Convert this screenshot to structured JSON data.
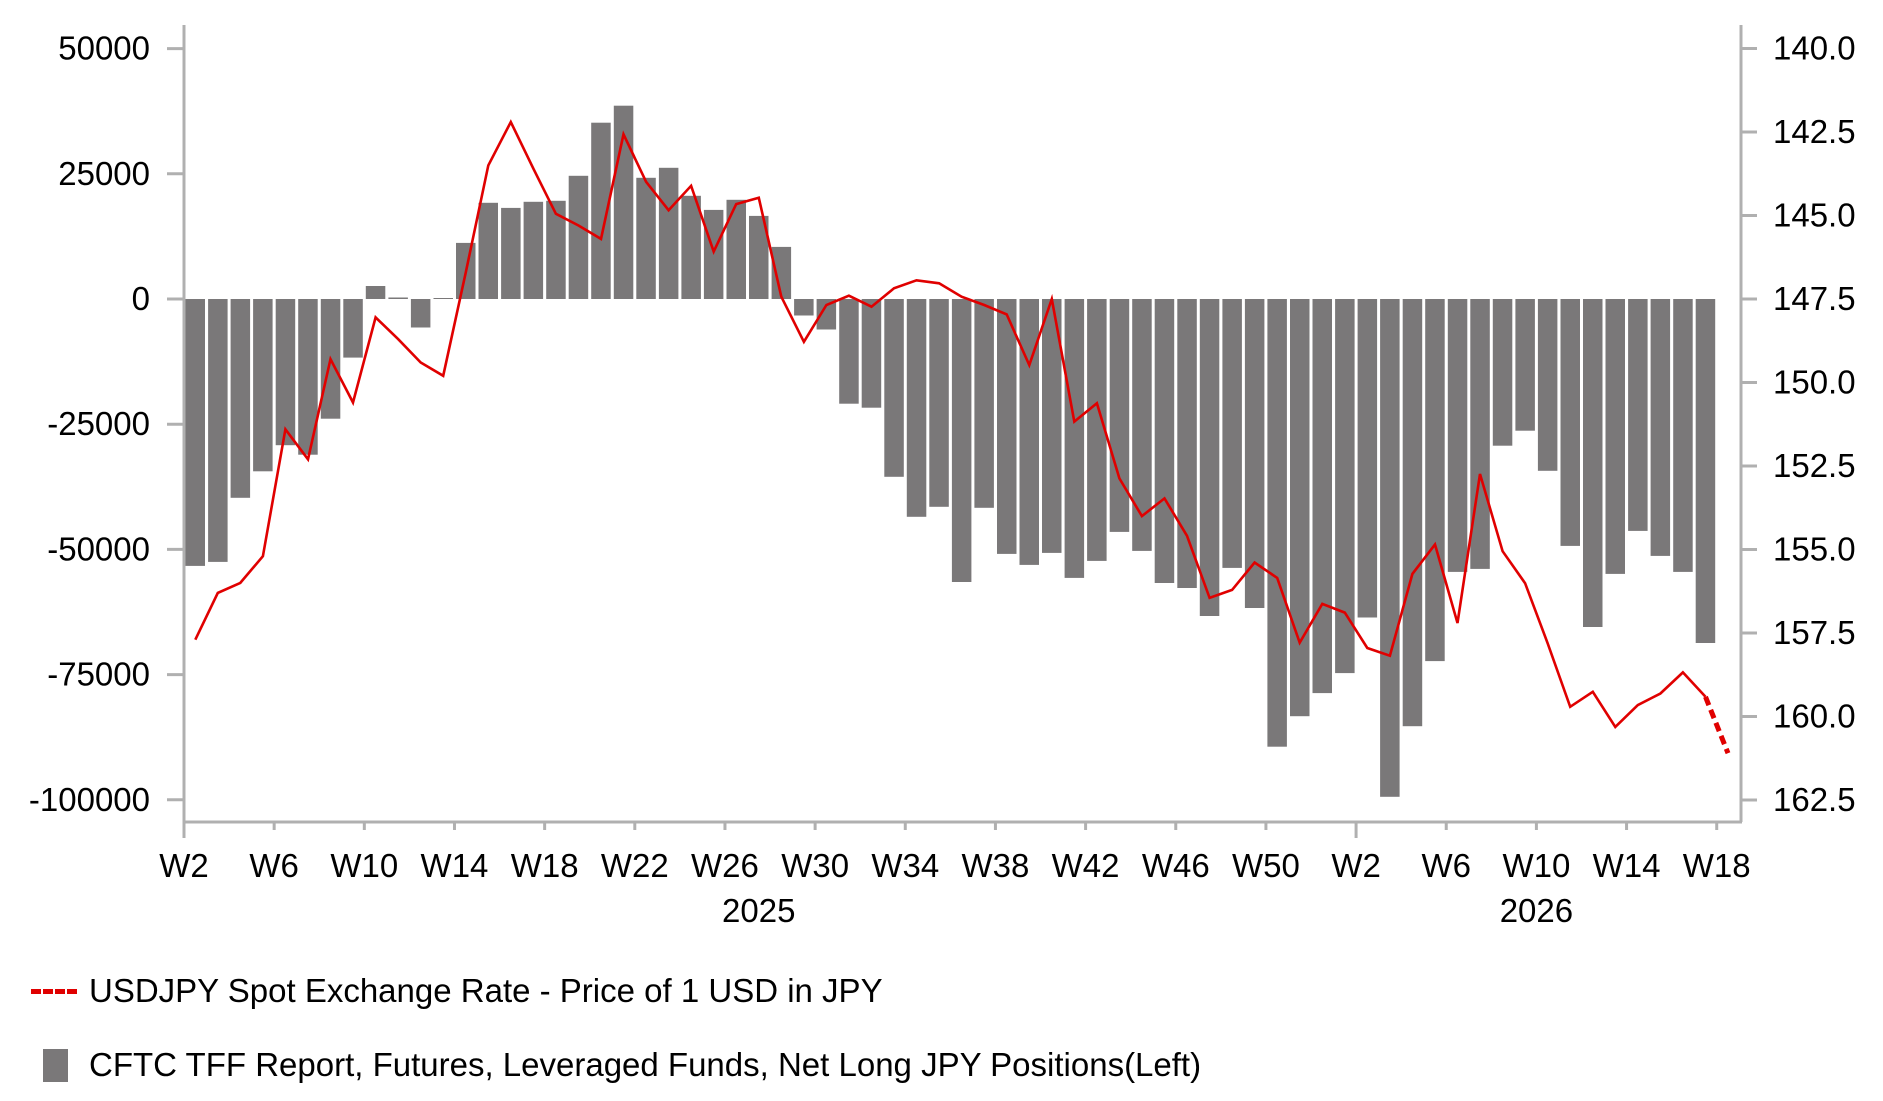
{
  "chart_data": {
    "type": "bar+line",
    "title": "",
    "categories": [
      "W2",
      "W3",
      "W4",
      "W5",
      "W6",
      "W7",
      "W8",
      "W9",
      "W10",
      "W11",
      "W12",
      "W13",
      "W14",
      "W15",
      "W16",
      "W17",
      "W18",
      "W19",
      "W20",
      "W21",
      "W22",
      "W23",
      "W24",
      "W25",
      "W26",
      "W27",
      "W28",
      "W29",
      "W30",
      "W31",
      "W32",
      "W33",
      "W34",
      "W35",
      "W36",
      "W37",
      "W38",
      "W39",
      "W40",
      "W41",
      "W42",
      "W43",
      "W44",
      "W45",
      "W46",
      "W47",
      "W48",
      "W49",
      "W50",
      "W51",
      "W52",
      "W1",
      "W2",
      "W3",
      "W4",
      "W5",
      "W6",
      "W7",
      "W8",
      "W9",
      "W10",
      "W11",
      "W12",
      "W13",
      "W14",
      "W15",
      "W16",
      "W17",
      "W18"
    ],
    "x_tick_labels": [
      "W2",
      "W6",
      "W10",
      "W14",
      "W18",
      "W22",
      "W26",
      "W30",
      "W34",
      "W38",
      "W42",
      "W46",
      "W50",
      "W2",
      "W6",
      "W10",
      "W14",
      "W18"
    ],
    "x_tick_indices": [
      0,
      4,
      8,
      12,
      16,
      20,
      24,
      28,
      32,
      36,
      40,
      44,
      48,
      52,
      56,
      60,
      64,
      68
    ],
    "year_labels": [
      {
        "label": "2025",
        "center_index": 25.5
      },
      {
        "label": "2026",
        "center_index": 60
      }
    ],
    "left_axis": {
      "ticks": [
        50000,
        25000,
        0,
        -25000,
        -50000,
        -75000,
        -100000
      ],
      "tick_labels": [
        "50000",
        "25000",
        "0",
        "-25000",
        "-50000",
        "-75000",
        "-100000"
      ],
      "range": [
        -105000,
        55500
      ]
    },
    "right_axis": {
      "inverted": true,
      "ticks": [
        140.0,
        142.5,
        145.0,
        147.5,
        150.0,
        152.5,
        155.0,
        157.5,
        160.0,
        162.5
      ],
      "tick_labels": [
        "140.0",
        "142.5",
        "145.0",
        "147.5",
        "150.0",
        "152.5",
        "155.0",
        "157.5",
        "160.0",
        "162.5"
      ],
      "range": [
        139.3,
        163.15
      ]
    },
    "series": [
      {
        "name": "CFTC TFF Report, Futures, Leveraged Funds, Net Long JPY Positions(Left)",
        "type": "bar",
        "axis": "left",
        "color": "#7a7879",
        "values": [
          -53300,
          -52500,
          -39700,
          -34400,
          -29200,
          -31100,
          -23900,
          -11700,
          2600,
          300,
          -5700,
          200,
          11200,
          19200,
          18200,
          19400,
          19600,
          24600,
          35200,
          38600,
          24200,
          26200,
          20600,
          17800,
          19800,
          16600,
          10400,
          -3300,
          -6100,
          -20900,
          -21700,
          -35500,
          -43500,
          -41500,
          -56500,
          -41700,
          -50900,
          -53100,
          -50700,
          -55700,
          -52300,
          -46500,
          -50300,
          -56700,
          -57700,
          -63300,
          -53700,
          -61700,
          -89400,
          -83300,
          -78700,
          -74700,
          -63600,
          -99400,
          -85300,
          -72300,
          -54500,
          -53900,
          -29300,
          -26300,
          -34300,
          -49300,
          -65500,
          -54900,
          -46300,
          -51300,
          -54500,
          -68700,
          null
        ]
      },
      {
        "name": "USDJPY Spot Exchange Rate - Price of 1 USD in JPY",
        "type": "line",
        "axis": "right",
        "color": "#e00000",
        "dashed_from_index": 67,
        "values": [
          157.7,
          156.3,
          156.0,
          155.2,
          151.4,
          152.3,
          149.3,
          150.6,
          148.05,
          148.7,
          149.4,
          149.8,
          146.7,
          143.5,
          142.2,
          143.6,
          144.95,
          145.3,
          145.7,
          142.57,
          143.99,
          144.84,
          144.11,
          146.08,
          144.66,
          144.47,
          147.43,
          148.78,
          147.68,
          147.4,
          147.73,
          147.18,
          146.94,
          147.03,
          147.43,
          147.68,
          147.96,
          149.48,
          147.5,
          151.17,
          150.62,
          152.87,
          154.0,
          153.47,
          154.59,
          156.45,
          156.21,
          155.39,
          155.85,
          157.79,
          156.63,
          156.89,
          157.95,
          158.18,
          155.73,
          154.85,
          157.2,
          152.74,
          155.05,
          156.01,
          157.81,
          159.71,
          159.26,
          160.31,
          159.66,
          159.31,
          158.68,
          159.41,
          161.1
        ]
      }
    ],
    "legend": {
      "placement": "bottom-left",
      "items": [
        {
          "label": "USDJPY Spot Exchange Rate - Price of 1 USD in JPY",
          "marker": "dashed-line",
          "color": "#e00000"
        },
        {
          "label": "CFTC TFF Report, Futures, Leveraged Funds, Net Long JPY Positions(Left)",
          "marker": "square",
          "color": "#7a7879"
        }
      ]
    },
    "grid": false,
    "axis_color": "#b0b0b0"
  }
}
